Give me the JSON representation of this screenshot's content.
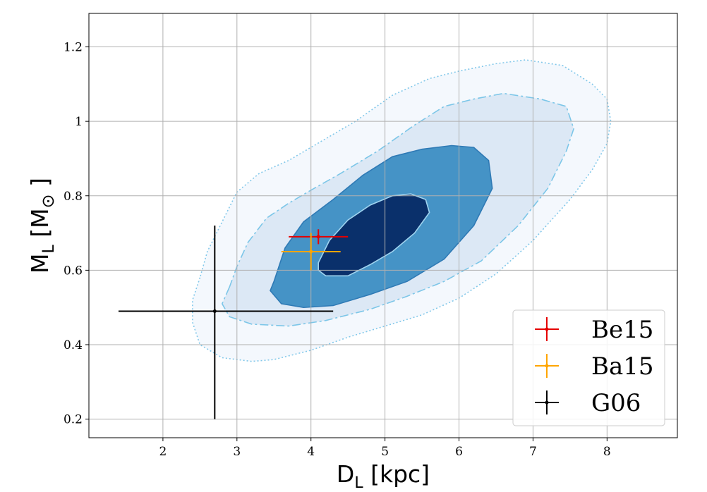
{
  "chart_data": {
    "type": "scatter",
    "xlabel": "D",
    "xlabel_sub": "L",
    "xlabel_unit": " [kpc]",
    "ylabel": "M",
    "ylabel_sub": "L",
    "ylabel_unit_open": " [M",
    "ylabel_unit_sym": "⊙",
    "ylabel_unit_close": " ]",
    "xlim": [
      1.0,
      8.95
    ],
    "ylim": [
      0.15,
      1.29
    ],
    "xticks": [
      2,
      3,
      4,
      5,
      6,
      7,
      8
    ],
    "yticks": [
      0.2,
      0.4,
      0.6,
      0.8,
      1.0,
      1.2
    ],
    "grid": true,
    "legend_position": "lower-right",
    "contours": [
      {
        "level": "outer",
        "fill": "#f4f8fd",
        "line": "#82c8ea",
        "dash": "dotted",
        "points": [
          [
            2.5,
            0.58
          ],
          [
            2.4,
            0.52
          ],
          [
            2.4,
            0.46
          ],
          [
            2.5,
            0.4
          ],
          [
            2.8,
            0.365
          ],
          [
            3.2,
            0.355
          ],
          [
            3.5,
            0.36
          ],
          [
            4.0,
            0.385
          ],
          [
            4.5,
            0.42
          ],
          [
            5.0,
            0.45
          ],
          [
            5.5,
            0.48
          ],
          [
            6.0,
            0.525
          ],
          [
            6.5,
            0.59
          ],
          [
            7.0,
            0.68
          ],
          [
            7.5,
            0.79
          ],
          [
            7.8,
            0.87
          ],
          [
            8.0,
            0.94
          ],
          [
            8.05,
            1.0
          ],
          [
            8.0,
            1.06
          ],
          [
            7.8,
            1.1
          ],
          [
            7.4,
            1.15
          ],
          [
            6.9,
            1.165
          ],
          [
            6.5,
            1.155
          ],
          [
            6.0,
            1.135
          ],
          [
            5.6,
            1.115
          ],
          [
            5.1,
            1.07
          ],
          [
            4.6,
            1.0
          ],
          [
            4.0,
            0.93
          ],
          [
            3.7,
            0.895
          ],
          [
            3.3,
            0.86
          ],
          [
            3.0,
            0.81
          ],
          [
            2.8,
            0.73
          ],
          [
            2.6,
            0.65
          ]
        ]
      },
      {
        "level": "2sigma",
        "fill": "#dce8f5",
        "line": "#7cc6e8",
        "dash": "dashdot",
        "points": [
          [
            2.9,
            0.555
          ],
          [
            2.8,
            0.51
          ],
          [
            2.9,
            0.475
          ],
          [
            3.2,
            0.455
          ],
          [
            3.7,
            0.45
          ],
          [
            4.2,
            0.465
          ],
          [
            4.8,
            0.495
          ],
          [
            5.3,
            0.53
          ],
          [
            5.8,
            0.57
          ],
          [
            6.3,
            0.625
          ],
          [
            6.8,
            0.72
          ],
          [
            7.2,
            0.82
          ],
          [
            7.45,
            0.92
          ],
          [
            7.55,
            0.98
          ],
          [
            7.45,
            1.04
          ],
          [
            7.1,
            1.06
          ],
          [
            6.6,
            1.075
          ],
          [
            6.2,
            1.06
          ],
          [
            5.8,
            1.04
          ],
          [
            5.4,
            0.99
          ],
          [
            4.9,
            0.92
          ],
          [
            4.4,
            0.86
          ],
          [
            4.0,
            0.815
          ],
          [
            3.7,
            0.78
          ],
          [
            3.4,
            0.74
          ],
          [
            3.15,
            0.675
          ],
          [
            3.0,
            0.61
          ]
        ]
      },
      {
        "level": "1sigma",
        "fill": "#4593c6",
        "line": "#2f7ab5",
        "dash": "solid",
        "points": [
          [
            3.5,
            0.57
          ],
          [
            3.45,
            0.545
          ],
          [
            3.6,
            0.51
          ],
          [
            3.9,
            0.5
          ],
          [
            4.3,
            0.505
          ],
          [
            4.8,
            0.535
          ],
          [
            5.3,
            0.57
          ],
          [
            5.8,
            0.63
          ],
          [
            6.2,
            0.72
          ],
          [
            6.45,
            0.82
          ],
          [
            6.4,
            0.895
          ],
          [
            6.2,
            0.93
          ],
          [
            5.9,
            0.935
          ],
          [
            5.5,
            0.925
          ],
          [
            5.1,
            0.905
          ],
          [
            4.7,
            0.855
          ],
          [
            4.3,
            0.79
          ],
          [
            3.9,
            0.73
          ],
          [
            3.65,
            0.66
          ]
        ]
      },
      {
        "level": "core",
        "fill": "#0a306b",
        "line": "#9fd3ef",
        "dash": "solid",
        "points": [
          [
            4.1,
            0.62
          ],
          [
            4.1,
            0.6
          ],
          [
            4.2,
            0.585
          ],
          [
            4.5,
            0.585
          ],
          [
            4.8,
            0.615
          ],
          [
            5.1,
            0.65
          ],
          [
            5.4,
            0.7
          ],
          [
            5.6,
            0.755
          ],
          [
            5.55,
            0.79
          ],
          [
            5.35,
            0.805
          ],
          [
            5.1,
            0.8
          ],
          [
            4.8,
            0.775
          ],
          [
            4.5,
            0.735
          ],
          [
            4.25,
            0.68
          ]
        ]
      }
    ],
    "series": [
      {
        "name": "Be15",
        "color": "#e50000",
        "x": 4.1,
        "y": 0.69,
        "xerr": [
          0.4,
          0.4
        ],
        "yerr": [
          0.02,
          0.02
        ]
      },
      {
        "name": "Ba15",
        "color": "#ffa500",
        "x": 4.0,
        "y": 0.65,
        "xerr": [
          0.4,
          0.4
        ],
        "yerr": [
          0.05,
          0.05
        ]
      },
      {
        "name": "G06",
        "color": "#000000",
        "x": 2.7,
        "y": 0.49,
        "xerr": [
          1.3,
          1.6
        ],
        "yerr": [
          0.29,
          0.23
        ]
      }
    ]
  }
}
